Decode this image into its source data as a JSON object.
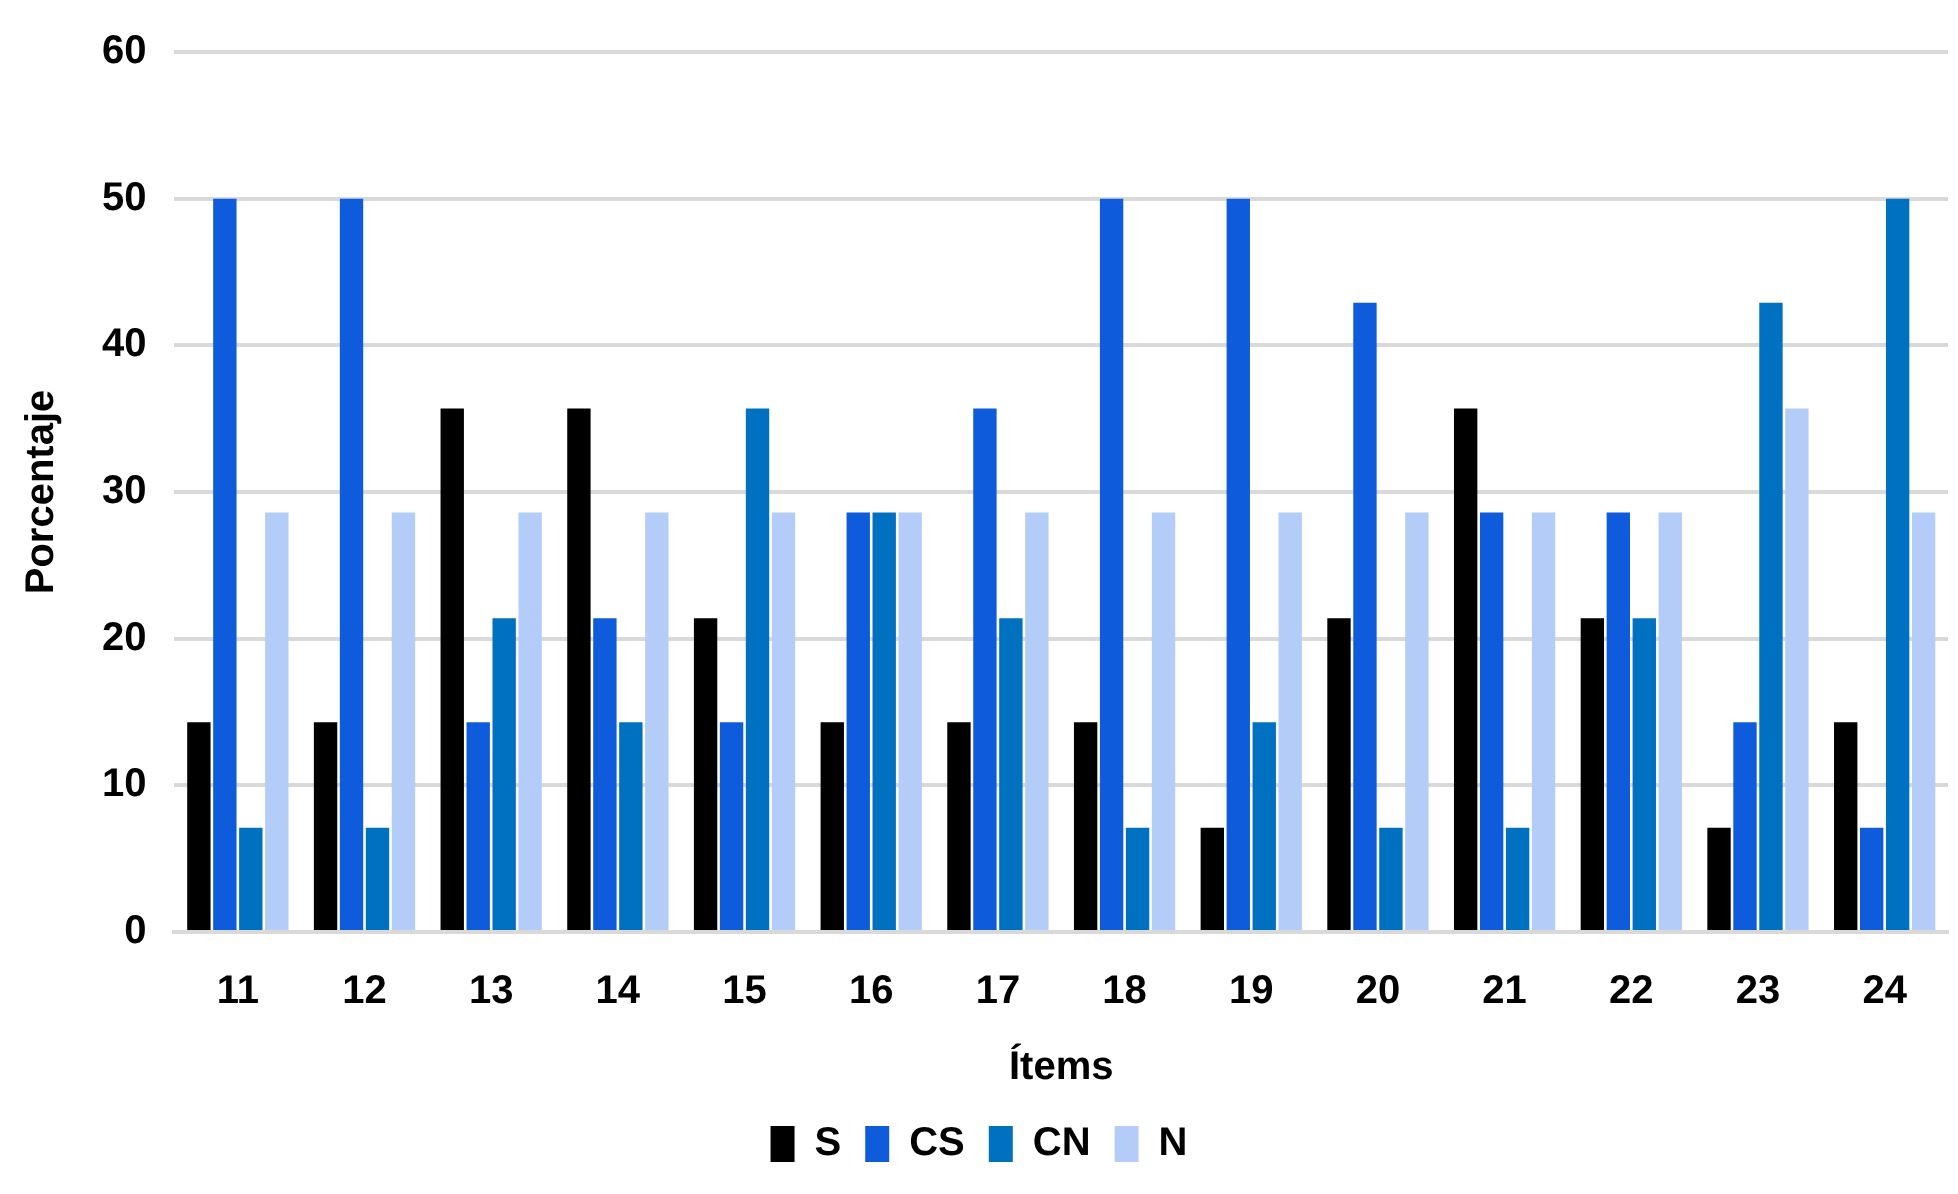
{
  "chart_data": {
    "type": "bar",
    "xlabel": "Ítems",
    "ylabel": "Porcentaje",
    "categories": [
      "11",
      "12",
      "13",
      "14",
      "15",
      "16",
      "17",
      "18",
      "19",
      "20",
      "21",
      "22",
      "23",
      "24"
    ],
    "series": [
      {
        "name": "S",
        "color": "#000000",
        "values": [
          14.3,
          14.3,
          35.7,
          35.7,
          21.4,
          14.3,
          14.3,
          14.3,
          7.1,
          21.4,
          35.7,
          21.4,
          7.1,
          14.3
        ]
      },
      {
        "name": "CS",
        "color": "#0e5bdc",
        "values": [
          50,
          50,
          14.3,
          21.4,
          14.3,
          28.6,
          35.7,
          50,
          50,
          42.9,
          28.6,
          28.6,
          14.3,
          7.1
        ]
      },
      {
        "name": "CN",
        "color": "#0070c0",
        "values": [
          7.1,
          7.1,
          21.4,
          14.3,
          35.7,
          28.6,
          21.4,
          7.1,
          14.3,
          7.1,
          7.1,
          21.4,
          42.9,
          50
        ]
      },
      {
        "name": "N",
        "color": "#b4cdf8",
        "values": [
          28.6,
          28.6,
          28.6,
          28.6,
          28.6,
          28.6,
          28.6,
          28.6,
          28.6,
          28.6,
          28.6,
          28.6,
          35.7,
          28.6
        ]
      }
    ],
    "ylim": [
      0,
      60
    ],
    "yticks": [
      0,
      10,
      20,
      30,
      40,
      50,
      60
    ],
    "grid": "y",
    "legend": "bottom"
  }
}
